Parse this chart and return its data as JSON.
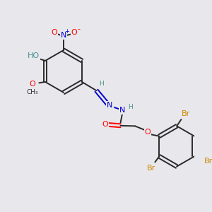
{
  "bg_color": "#e8e8ec",
  "bond_color": "#2a2a2a",
  "colors": {
    "N": "#0000cc",
    "O": "#ff0000",
    "Br": "#cc8800",
    "C": "#2a2a2a",
    "HO": "#4a9090",
    "H": "#4a9090"
  }
}
